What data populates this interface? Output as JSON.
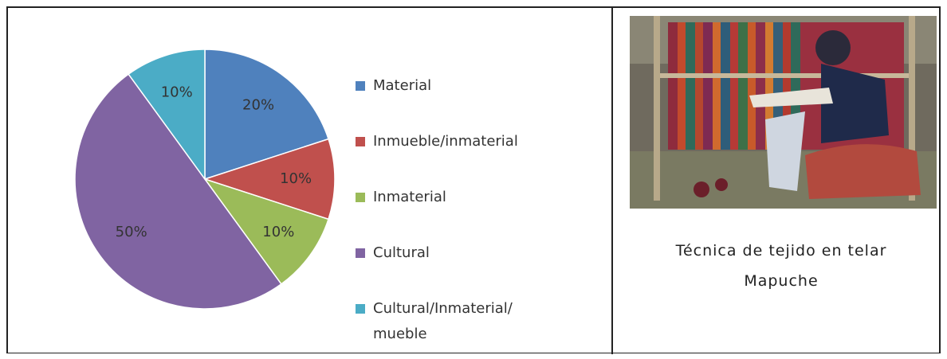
{
  "chart_data": {
    "type": "pie",
    "categories": [
      "Material",
      "Inmueble/inmaterial",
      "Inmaterial",
      "Cultural",
      "Cultural/Inmaterial/ mueble"
    ],
    "values": [
      20,
      10,
      10,
      50,
      10
    ],
    "value_labels": [
      "20%",
      "10%",
      "10%",
      "50%",
      "10%"
    ],
    "colors": [
      "#4f81bd",
      "#c0504d",
      "#9bbb59",
      "#8064a2",
      "#4bacc6"
    ],
    "legend": "right"
  },
  "caption": "Técnica de tejido en telar Mapuche"
}
